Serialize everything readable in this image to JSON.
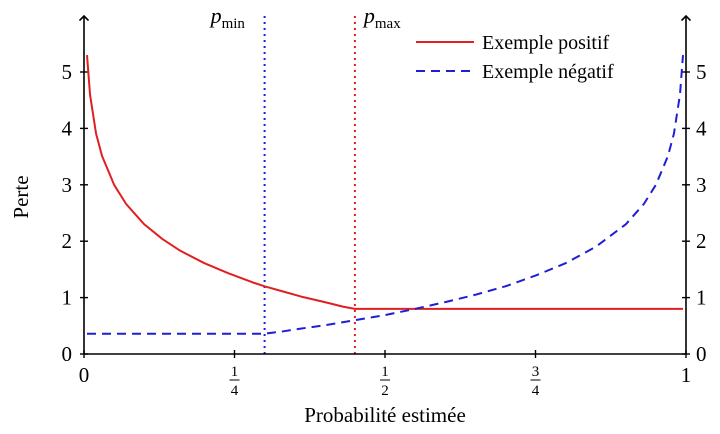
{
  "chart_data": {
    "type": "line",
    "title": "",
    "xlabel": "Probabilité estimée",
    "ylabel": "Perte",
    "xlim": [
      0,
      1
    ],
    "ylim": [
      0,
      5.9
    ],
    "grid": false,
    "legend_position": "top-right",
    "x_ticks": [
      {
        "value": 0,
        "label": "0"
      },
      {
        "value": 0.25,
        "num": "1",
        "den": "4"
      },
      {
        "value": 0.5,
        "num": "1",
        "den": "2"
      },
      {
        "value": 0.75,
        "num": "3",
        "den": "4"
      },
      {
        "value": 1,
        "label": "1"
      }
    ],
    "y_ticks": [
      "0",
      "1",
      "2",
      "3",
      "4",
      "5"
    ],
    "thresholds": [
      {
        "name": "p",
        "sub": "min",
        "x": 0.3,
        "color": "#1f1fd6"
      },
      {
        "name": "p",
        "sub": "max",
        "x": 0.45,
        "color": "#e02020"
      }
    ],
    "series": [
      {
        "name": "Exemple positif",
        "style": "solid",
        "color": "#e02020",
        "x": [
          0.005,
          0.01,
          0.02,
          0.03,
          0.05,
          0.07,
          0.1,
          0.13,
          0.16,
          0.2,
          0.24,
          0.28,
          0.3,
          0.33,
          0.36,
          0.4,
          0.43,
          0.45,
          0.5,
          0.6,
          0.7,
          0.8,
          0.9,
          0.995
        ],
        "y": [
          5.3,
          4.6,
          3.91,
          3.51,
          3.0,
          2.66,
          2.3,
          2.04,
          1.83,
          1.61,
          1.43,
          1.27,
          1.2,
          1.11,
          1.02,
          0.92,
          0.84,
          0.8,
          0.8,
          0.8,
          0.8,
          0.8,
          0.8,
          0.8
        ]
      },
      {
        "name": "Exemple négatif",
        "style": "dashed",
        "color": "#1f1fd6",
        "x": [
          0.005,
          0.1,
          0.2,
          0.3,
          0.33,
          0.36,
          0.4,
          0.45,
          0.5,
          0.55,
          0.6,
          0.65,
          0.7,
          0.75,
          0.8,
          0.85,
          0.9,
          0.93,
          0.95,
          0.97,
          0.98,
          0.99,
          0.995
        ],
        "y": [
          0.36,
          0.36,
          0.36,
          0.36,
          0.4,
          0.45,
          0.51,
          0.6,
          0.69,
          0.8,
          0.92,
          1.05,
          1.2,
          1.39,
          1.61,
          1.9,
          2.3,
          2.66,
          3.0,
          3.51,
          3.91,
          4.6,
          5.3
        ]
      }
    ]
  }
}
